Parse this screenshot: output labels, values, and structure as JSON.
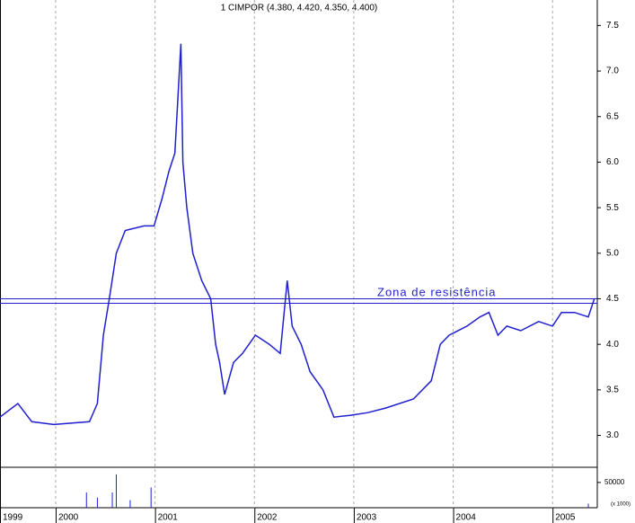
{
  "chart_data": {
    "type": "line",
    "title": "1 CIMPOR (4.380, 4.420, 4.350, 4.400)",
    "annotation": "Zona de resistência",
    "x": [
      1999.44,
      1999.62,
      1999.76,
      1999.98,
      2000.34,
      2000.42,
      2000.48,
      2000.54,
      2000.61,
      2000.7,
      2000.89,
      2000.99,
      2001.07,
      2001.14,
      2001.2,
      2001.26,
      2001.28,
      2001.32,
      2001.38,
      2001.47,
      2001.56,
      2001.61,
      2001.65,
      2001.7,
      2001.79,
      2001.88,
      2002.01,
      2002.15,
      2002.26,
      2002.33,
      2002.38,
      2002.47,
      2002.56,
      2002.69,
      2002.8,
      2002.96,
      2003.14,
      2003.32,
      2003.6,
      2003.78,
      2003.87,
      2003.96,
      2004.14,
      2004.27,
      2004.36,
      2004.45,
      2004.54,
      2004.68,
      2004.86,
      2005.0,
      2005.09,
      2005.22,
      2005.36,
      2005.42
    ],
    "series": [
      {
        "color": "#1f1fd0",
        "values": [
          3.2,
          3.35,
          3.15,
          3.12,
          3.15,
          3.35,
          4.1,
          4.5,
          5.0,
          5.25,
          5.3,
          5.3,
          5.6,
          5.9,
          6.1,
          7.3,
          6.0,
          5.5,
          5.0,
          4.7,
          4.5,
          4.0,
          3.8,
          3.45,
          3.8,
          3.9,
          4.1,
          4.0,
          3.9,
          4.7,
          4.2,
          4.0,
          3.7,
          3.5,
          3.2,
          3.22,
          3.25,
          3.3,
          3.4,
          3.6,
          4.0,
          4.1,
          4.2,
          4.3,
          4.35,
          4.1,
          4.2,
          4.15,
          4.25,
          4.2,
          4.35,
          4.35,
          4.3,
          4.5
        ]
      }
    ],
    "hlines": [
      4.5,
      4.45
    ],
    "xlim": [
      1999.44,
      2005.45
    ],
    "xticks": [
      {
        "value": 1999.44,
        "label": "1999"
      },
      2000,
      2001,
      2002,
      2003,
      2004,
      2005
    ],
    "ylim": [
      2.65,
      7.78
    ],
    "yticks": [
      {
        "value": 3,
        "label": "3.0"
      },
      3.5,
      {
        "value": 4,
        "label": "4.0"
      },
      4.5,
      {
        "value": 5,
        "label": "5.0"
      },
      5.5,
      {
        "value": 6,
        "label": "6.0"
      },
      6.5,
      {
        "value": 7,
        "label": "7.0"
      },
      7.5
    ],
    "grid": true,
    "volume": {
      "color": "#1f1fd0",
      "unit_label": "(x 1000)",
      "x": [
        2000.31,
        2000.42,
        2000.57,
        2000.61,
        2000.75,
        2000.96,
        2005.36
      ],
      "values": [
        30000,
        20000,
        30000,
        66000,
        15000,
        40000,
        8000
      ],
      "ylim": [
        0,
        80000
      ],
      "yticks": [
        50000
      ]
    }
  }
}
